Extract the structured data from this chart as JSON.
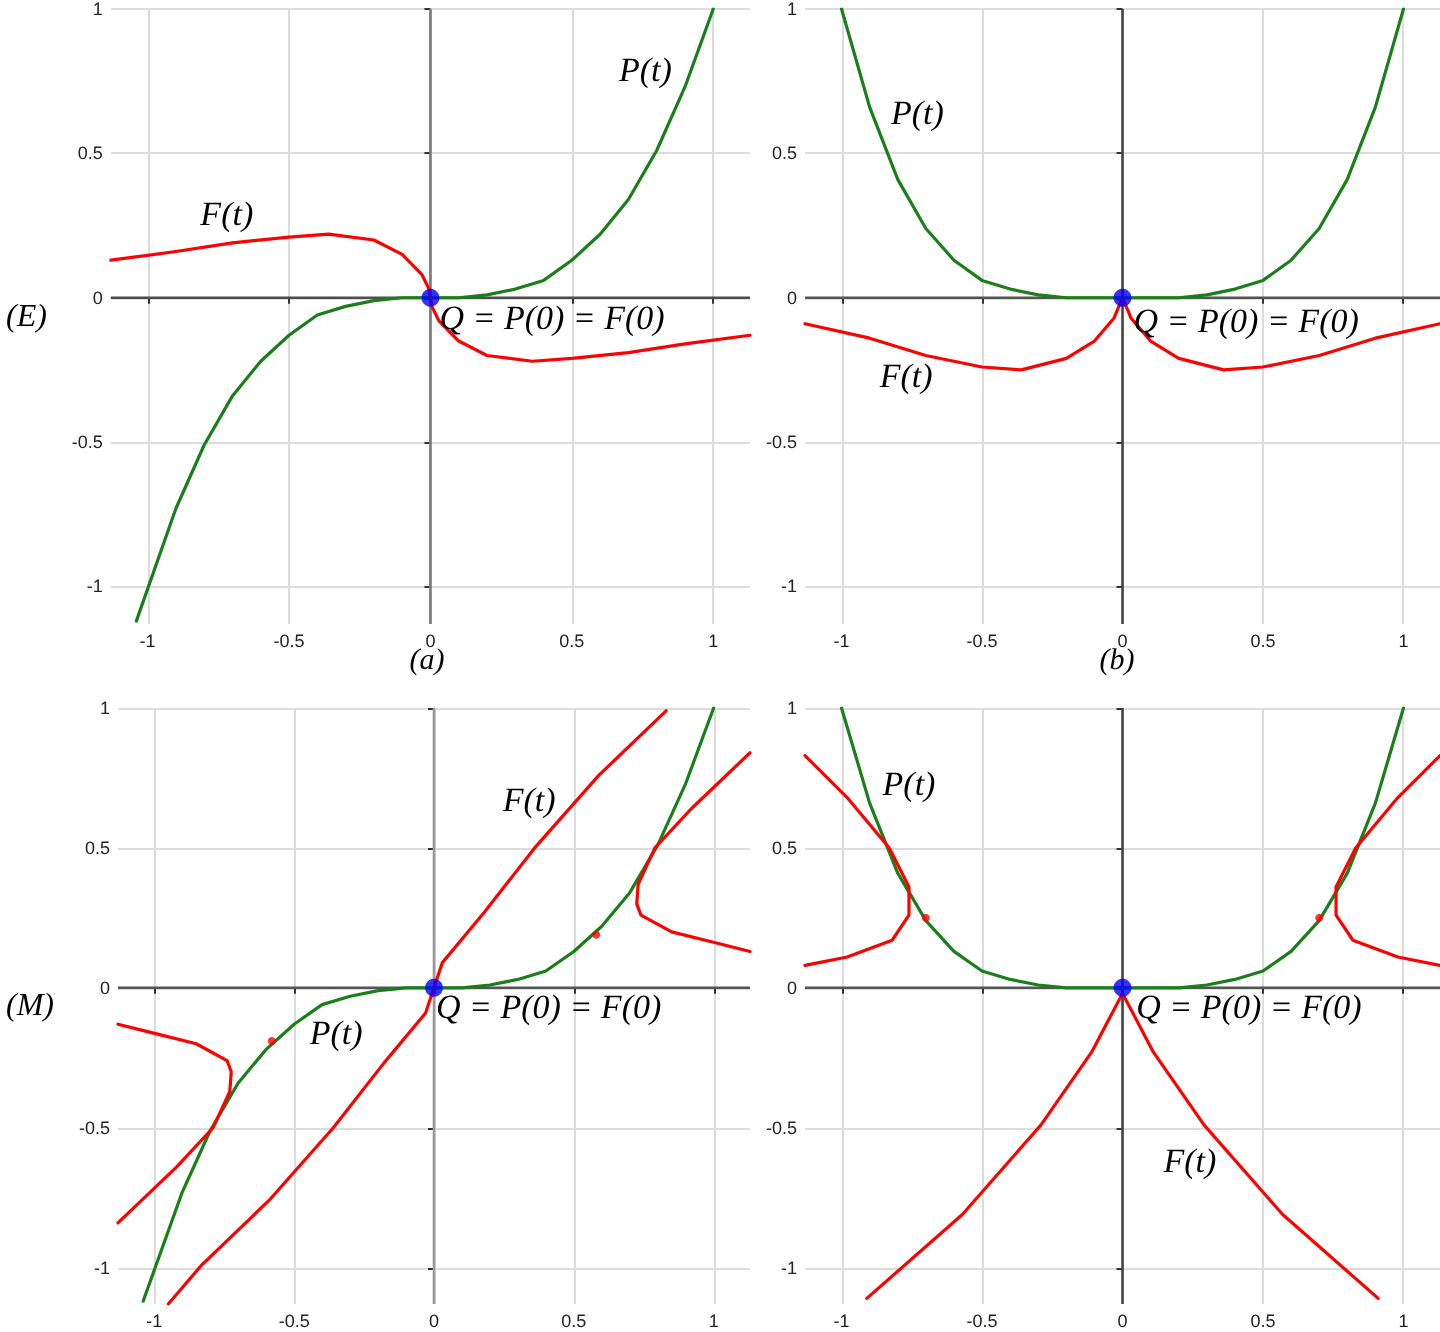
{
  "chart_data": [
    {
      "type": "line",
      "title": "(a)",
      "ylabel": "(E)",
      "xlim": [
        -1.13,
        1.13
      ],
      "ylim": [
        -1.13,
        1
      ],
      "xticks": [
        -1,
        -0.5,
        0,
        0.5,
        1
      ],
      "yticks": [
        -1,
        -0.5,
        0,
        0.5,
        1
      ],
      "grid": true,
      "marker": "none",
      "ref_lines": [
        {
          "axis": "x",
          "value": 0,
          "color": "#777777"
        },
        {
          "axis": "y",
          "value": 0,
          "color": "#4d4d4d"
        }
      ],
      "series": [
        {
          "color": "#1a7f1a",
          "x": [
            -1.04,
            -0.9,
            -0.8,
            -0.7,
            -0.6,
            -0.5,
            -0.4,
            -0.3,
            -0.2,
            -0.1,
            0,
            0.1,
            0.2,
            0.3,
            0.4,
            0.5,
            0.6,
            0.7,
            0.8,
            0.9,
            1
          ],
          "values": [
            -1.12,
            -0.73,
            -0.51,
            -0.34,
            -0.22,
            -0.13,
            -0.06,
            -0.03,
            -0.01,
            0,
            0,
            0,
            0.01,
            0.03,
            0.06,
            0.13,
            0.22,
            0.34,
            0.51,
            0.73,
            1
          ]
        },
        {
          "color": "#ff0000",
          "x": [
            -1.13,
            -0.9,
            -0.7,
            -0.5,
            -0.36,
            -0.2,
            -0.1,
            -0.03,
            -0.005,
            0,
            0.005,
            0.03,
            0.1,
            0.2,
            0.36,
            0.5,
            0.7,
            0.9,
            1.13
          ],
          "values": [
            0.13,
            0.16,
            0.19,
            0.21,
            0.22,
            0.2,
            0.15,
            0.08,
            0.03,
            0,
            -0.03,
            -0.08,
            -0.15,
            -0.2,
            -0.22,
            -0.21,
            -0.19,
            -0.16,
            -0.13
          ]
        },
        {
          "type": "scatter",
          "marker": "circle",
          "color": "#0000ff",
          "x": [
            0
          ],
          "values": [
            0
          ]
        }
      ],
      "annotations": [
        "P(t)",
        "F(t)",
        "Q = P(0) = F(0)"
      ]
    },
    {
      "type": "line",
      "title": "(b)",
      "xlim": [
        -1.13,
        1.13
      ],
      "ylim": [
        -1.13,
        1
      ],
      "xticks": [
        -1,
        -0.5,
        0,
        0.5,
        1
      ],
      "yticks": [
        -1,
        -0.5,
        0,
        0.5,
        1
      ],
      "grid": true,
      "marker": "none",
      "ref_lines": [
        {
          "axis": "x",
          "value": 0,
          "color": "#444444"
        },
        {
          "axis": "y",
          "value": 0,
          "color": "#555555"
        }
      ],
      "series": [
        {
          "color": "#1a7f1a",
          "x": [
            -1,
            -0.9,
            -0.8,
            -0.7,
            -0.6,
            -0.5,
            -0.4,
            -0.3,
            -0.2,
            0,
            0.2,
            0.3,
            0.4,
            0.5,
            0.6,
            0.7,
            0.8,
            0.9,
            1
          ],
          "values": [
            1,
            0.66,
            0.41,
            0.24,
            0.13,
            0.06,
            0.03,
            0.01,
            0,
            0,
            0,
            0.01,
            0.03,
            0.06,
            0.13,
            0.24,
            0.41,
            0.66,
            1
          ]
        },
        {
          "color": "#ff0000",
          "x": [
            -1.13,
            -0.9,
            -0.7,
            -0.5,
            -0.36,
            -0.2,
            -0.1,
            -0.03,
            0,
            0.03,
            0.1,
            0.2,
            0.36,
            0.5,
            0.7,
            0.9,
            1.13
          ],
          "values": [
            -0.09,
            -0.14,
            -0.2,
            -0.24,
            -0.25,
            -0.21,
            -0.15,
            -0.07,
            0,
            -0.07,
            -0.15,
            -0.21,
            -0.25,
            -0.24,
            -0.2,
            -0.14,
            -0.09
          ]
        },
        {
          "type": "scatter",
          "marker": "circle",
          "color": "#0000ff",
          "x": [
            0
          ],
          "values": [
            0
          ]
        }
      ],
      "annotations": [
        "P(t)",
        "F(t)",
        "Q = P(0) = F(0)"
      ]
    },
    {
      "type": "line",
      "ylabel": "(M)",
      "xlim": [
        -1.13,
        1.13
      ],
      "ylim": [
        -1.13,
        1
      ],
      "xticks": [
        -1,
        -0.5,
        0,
        0.5,
        1
      ],
      "yticks": [
        -1,
        -0.5,
        0,
        0.5,
        1
      ],
      "grid": true,
      "marker": "none",
      "ref_lines": [
        {
          "axis": "x",
          "value": 0,
          "color": "#999999"
        },
        {
          "axis": "y",
          "value": 0,
          "color": "#555555"
        }
      ],
      "series": [
        {
          "color": "#1a7f1a",
          "x": [
            -1.04,
            -0.9,
            -0.8,
            -0.7,
            -0.6,
            -0.5,
            -0.4,
            -0.3,
            -0.2,
            -0.1,
            0,
            0.1,
            0.2,
            0.3,
            0.4,
            0.5,
            0.6,
            0.7,
            0.8,
            0.9,
            1
          ],
          "values": [
            -1.12,
            -0.73,
            -0.51,
            -0.34,
            -0.22,
            -0.13,
            -0.06,
            -0.03,
            -0.01,
            0,
            0,
            0,
            0.01,
            0.03,
            0.06,
            0.13,
            0.22,
            0.34,
            0.51,
            0.73,
            1
          ]
        },
        {
          "color": "#ff0000",
          "x": [
            -0.95,
            -0.83,
            -0.59,
            -0.36,
            -0.18,
            -0.03,
            0,
            0.03,
            0.18,
            0.36,
            0.59,
            0.83,
            null,
            1.13,
            0.92,
            0.79,
            0.73,
            0.725,
            0.74,
            0.85,
            1.01,
            1.13,
            null,
            -1.13,
            -0.92,
            -0.79,
            -0.73,
            -0.725,
            -0.74,
            -0.85,
            -1.01,
            -1.13
          ],
          "values": [
            -1.13,
            -0.99,
            -0.76,
            -0.5,
            -0.27,
            -0.09,
            0,
            0.09,
            0.27,
            0.5,
            0.76,
            0.99,
            null,
            0.84,
            0.64,
            0.5,
            0.37,
            0.3,
            0.26,
            0.2,
            0.16,
            0.13,
            null,
            -0.84,
            -0.64,
            -0.5,
            -0.37,
            -0.3,
            -0.26,
            -0.2,
            -0.16,
            -0.13
          ]
        },
        {
          "type": "scatter",
          "marker": "circle",
          "color": "#ff0000",
          "x": [
            -0.58,
            0.58
          ],
          "values": [
            -0.19,
            0.19
          ]
        },
        {
          "type": "scatter",
          "marker": "circle",
          "color": "#0000ff",
          "x": [
            0
          ],
          "values": [
            0
          ]
        }
      ],
      "annotations": [
        "F(t)",
        "P(t)",
        "Q = P(0) = F(0)"
      ]
    },
    {
      "type": "line",
      "xlim": [
        -1.13,
        1.13
      ],
      "ylim": [
        -1.13,
        1
      ],
      "xticks": [
        -1,
        -0.5,
        0,
        0.5,
        1
      ],
      "yticks": [
        -1,
        -0.5,
        0,
        0.5,
        1
      ],
      "grid": true,
      "marker": "none",
      "ref_lines": [
        {
          "axis": "x",
          "value": 0,
          "color": "#444444"
        },
        {
          "axis": "y",
          "value": 0,
          "color": "#555555"
        }
      ],
      "series": [
        {
          "color": "#1a7f1a",
          "x": [
            -1,
            -0.9,
            -0.8,
            -0.7,
            -0.6,
            -0.5,
            -0.4,
            -0.3,
            -0.2,
            0,
            0.2,
            0.3,
            0.4,
            0.5,
            0.6,
            0.7,
            0.8,
            0.9,
            1
          ],
          "values": [
            1,
            0.66,
            0.41,
            0.24,
            0.13,
            0.06,
            0.03,
            0.01,
            0,
            0,
            0,
            0.01,
            0.03,
            0.06,
            0.13,
            0.24,
            0.41,
            0.66,
            1
          ]
        },
        {
          "color": "#ff0000",
          "x": [
            -0.91,
            -0.57,
            -0.29,
            -0.11,
            0,
            0.11,
            0.29,
            0.57,
            0.91,
            null,
            -1.13,
            -0.98,
            -0.83,
            -0.76,
            -0.76,
            -0.82,
            -0.98,
            -1.13,
            null,
            1.13,
            0.98,
            0.83,
            0.76,
            0.76,
            0.82,
            0.98,
            1.13
          ],
          "values": [
            -1.11,
            -0.81,
            -0.49,
            -0.23,
            -0.02,
            -0.23,
            -0.49,
            -0.81,
            -1.11,
            null,
            0.83,
            0.68,
            0.5,
            0.36,
            0.26,
            0.17,
            0.11,
            0.08,
            null,
            0.83,
            0.68,
            0.5,
            0.36,
            0.26,
            0.17,
            0.11,
            0.08
          ]
        },
        {
          "type": "scatter",
          "marker": "circle",
          "color": "#ff0000",
          "x": [
            -0.7,
            0.7
          ],
          "values": [
            0.25,
            0.25
          ]
        },
        {
          "type": "scatter",
          "marker": "circle",
          "color": "#0000ff",
          "x": [
            0
          ],
          "values": [
            0
          ]
        }
      ],
      "annotations": [
        "P(t)",
        "F(t)",
        "Q = P(0) = F(0)"
      ]
    }
  ]
}
